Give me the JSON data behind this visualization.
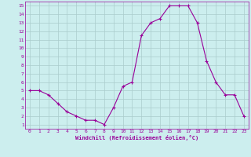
{
  "x": [
    0,
    1,
    2,
    3,
    4,
    5,
    6,
    7,
    8,
    9,
    10,
    11,
    12,
    13,
    14,
    15,
    16,
    17,
    18,
    19,
    20,
    21,
    22,
    23
  ],
  "y": [
    5,
    5,
    4.5,
    3.5,
    2.5,
    2,
    1.5,
    1.5,
    1,
    3,
    5.5,
    6,
    11.5,
    13,
    13.5,
    15,
    15,
    15,
    13,
    8.5,
    6,
    4.5,
    4.5,
    2
  ],
  "line_color": "#990099",
  "marker_color": "#990099",
  "bg_color": "#cceeee",
  "grid_color": "#aacccc",
  "xlabel": "Windchill (Refroidissement éolien,°C)",
  "ylabel_ticks": [
    1,
    2,
    3,
    4,
    5,
    6,
    7,
    8,
    9,
    10,
    11,
    12,
    13,
    14,
    15
  ],
  "xlim": [
    -0.5,
    23.5
  ],
  "ylim": [
    0.5,
    15.5
  ],
  "xlabel_color": "#990099",
  "tick_color": "#990099"
}
